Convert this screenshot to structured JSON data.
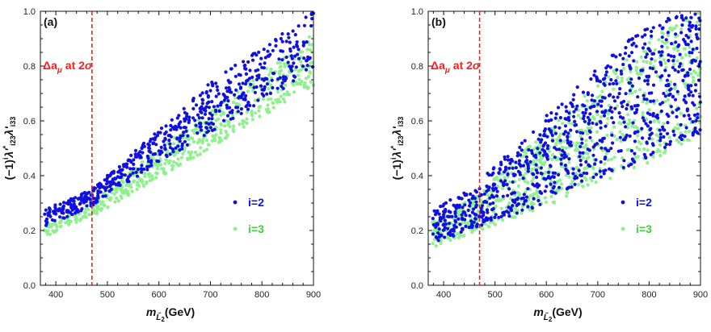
{
  "chart_data": [
    {
      "type": "scatter",
      "panel_label": "(a)",
      "xlabel": "m_{\\tilde L_2}(GeV)",
      "ylabel": "(-1)^i λ'*_{i23} λ'_{i33}",
      "xlim": [
        370,
        900
      ],
      "ylim": [
        0.0,
        1.0
      ],
      "xticks": [
        "400",
        "500",
        "600",
        "700",
        "800",
        "900"
      ],
      "yticks": [
        "0.0",
        "0.2",
        "0.4",
        "0.6",
        "0.8",
        "1.0"
      ],
      "legend_position": "lower-right",
      "annotation": {
        "text": "Δa_μ at 2σ",
        "x": 470
      },
      "series": [
        {
          "name": "i=2",
          "color": "#1010e0",
          "band": {
            "lower": [
              [
                370,
                0.2
              ],
              [
                470,
                0.29
              ],
              [
                560,
                0.4
              ],
              [
                700,
                0.56
              ],
              [
                900,
                0.78
              ]
            ],
            "upper": [
              [
                370,
                0.27
              ],
              [
                470,
                0.35
              ],
              [
                560,
                0.5
              ],
              [
                700,
                0.74
              ],
              [
                900,
                1.0
              ]
            ]
          }
        },
        {
          "name": "i=3",
          "color": "#8ef08e",
          "band": {
            "lower": [
              [
                370,
                0.17
              ],
              [
                470,
                0.25
              ],
              [
                560,
                0.35
              ],
              [
                700,
                0.5
              ],
              [
                900,
                0.73
              ]
            ],
            "upper": [
              [
                370,
                0.22
              ],
              [
                470,
                0.3
              ],
              [
                560,
                0.44
              ],
              [
                700,
                0.64
              ],
              [
                900,
                0.92
              ]
            ]
          }
        }
      ]
    },
    {
      "type": "scatter",
      "panel_label": "(b)",
      "xlabel": "m_{\\tilde L_2}(GeV)",
      "ylabel": "(-1)^i λ'*_{i23} λ'_{i33}",
      "xlim": [
        370,
        900
      ],
      "ylim": [
        0.0,
        1.0
      ],
      "xticks": [
        "400",
        "500",
        "600",
        "700",
        "800",
        "900"
      ],
      "yticks": [
        "0.0",
        "0.2",
        "0.4",
        "0.6",
        "0.8",
        "1.0"
      ],
      "legend_position": "lower-right",
      "annotation": {
        "text": "Δa_μ at 2σ",
        "x": 470
      },
      "series": [
        {
          "name": "i=2",
          "color": "#1010e0",
          "band": {
            "lower": [
              [
                370,
                0.15
              ],
              [
                470,
                0.21
              ],
              [
                600,
                0.3
              ],
              [
                750,
                0.42
              ],
              [
                900,
                0.56
              ]
            ],
            "upper": [
              [
                370,
                0.26
              ],
              [
                470,
                0.38
              ],
              [
                560,
                0.55
              ],
              [
                680,
                0.76
              ],
              [
                800,
                0.96
              ],
              [
                900,
                1.0
              ]
            ]
          }
        },
        {
          "name": "i=3",
          "color": "#8ef08e",
          "band": {
            "lower": [
              [
                370,
                0.13
              ],
              [
                470,
                0.2
              ],
              [
                600,
                0.29
              ],
              [
                750,
                0.4
              ],
              [
                900,
                0.55
              ]
            ],
            "upper": [
              [
                370,
                0.22
              ],
              [
                470,
                0.34
              ],
              [
                560,
                0.5
              ],
              [
                680,
                0.7
              ],
              [
                800,
                0.9
              ],
              [
                900,
                1.0
              ]
            ]
          }
        }
      ]
    }
  ]
}
